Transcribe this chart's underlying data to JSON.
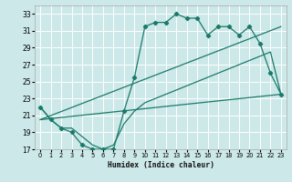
{
  "xlabel": "Humidex (Indice chaleur)",
  "bg_color": "#cce8e8",
  "grid_color": "#ffffff",
  "line_color": "#1a7a6a",
  "xlim": [
    -0.5,
    23.5
  ],
  "ylim": [
    17,
    34
  ],
  "xticks": [
    0,
    1,
    2,
    3,
    4,
    5,
    6,
    7,
    8,
    9,
    10,
    11,
    12,
    13,
    14,
    15,
    16,
    17,
    18,
    19,
    20,
    21,
    22,
    23
  ],
  "yticks": [
    17,
    19,
    21,
    23,
    25,
    27,
    29,
    31,
    33
  ],
  "curve1_x": [
    0,
    1,
    2,
    3,
    4,
    5,
    6,
    7,
    8,
    9,
    10,
    11,
    12,
    13,
    14,
    15,
    16,
    17,
    18,
    19,
    20,
    21,
    22,
    23
  ],
  "curve1_y": [
    22.0,
    20.5,
    19.5,
    19.0,
    17.5,
    17.0,
    17.0,
    17.0,
    21.5,
    25.5,
    31.5,
    32.0,
    32.0,
    33.0,
    32.5,
    32.5,
    30.5,
    31.5,
    31.5,
    30.5,
    31.5,
    29.5,
    26.0,
    23.5
  ],
  "curve2_x": [
    0,
    1,
    2,
    3,
    4,
    5,
    6,
    7,
    8,
    9,
    10,
    11,
    12,
    13,
    14,
    15,
    16,
    17,
    18,
    19,
    20,
    21,
    22,
    23
  ],
  "curve2_y": [
    22.0,
    20.5,
    19.5,
    19.5,
    18.5,
    17.5,
    17.0,
    17.5,
    20.0,
    21.5,
    22.5,
    23.0,
    23.5,
    24.0,
    24.5,
    25.0,
    25.5,
    26.0,
    26.5,
    27.0,
    27.5,
    28.0,
    28.5,
    23.5
  ],
  "line1_x": [
    0,
    23
  ],
  "line1_y": [
    20.5,
    23.5
  ],
  "line2_x": [
    0,
    23
  ],
  "line2_y": [
    20.5,
    31.5
  ]
}
